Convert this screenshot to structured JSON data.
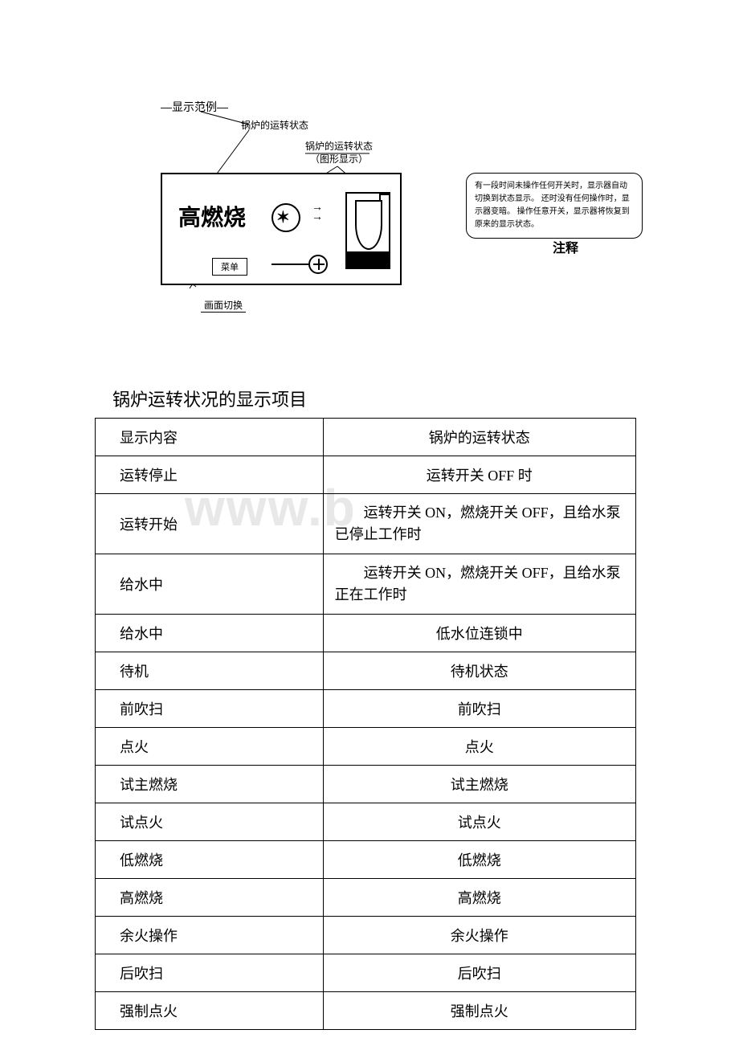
{
  "watermark": "www.b",
  "diagram": {
    "legend": "—显示范例—",
    "callout1": "锅炉的运转状态",
    "callout2_line1": "锅炉的运转状态",
    "callout2_line2": "（图形显示）",
    "big_text": "高燃烧",
    "menu_btn": "菜单",
    "callout_bottom": "画面切换",
    "note_text": "有一段时间未操作任何开关时，显示器自动切换到状态显示。 还时没有任何操作时，显示器变暗。 操作任意开关，显示器将恢复到原来的显示状态。",
    "note_label": "注释"
  },
  "section_title": "锅炉运转状况的显示项目",
  "table": {
    "rows": [
      {
        "c1": "显示内容",
        "c2": "锅炉的运转状态",
        "center": true
      },
      {
        "c1": "运转停止",
        "c2": "运转开关 OFF 时",
        "center": true
      },
      {
        "c1": "运转开始",
        "c2": "　　运转开关 ON，燃烧开关 OFF，且给水泵已停止工作时",
        "tall": true,
        "multi": true
      },
      {
        "c1": "给水中",
        "c2": "　　运转开关 ON，燃烧开关 OFF，且给水泵正在工作时",
        "tall": true,
        "multi": true
      },
      {
        "c1": "给水中",
        "c2": "低水位连锁中",
        "center": true
      },
      {
        "c1": "待机",
        "c2": "待机状态",
        "center": true
      },
      {
        "c1": "前吹扫",
        "c2": "前吹扫",
        "center": true
      },
      {
        "c1": "点火",
        "c2": "点火",
        "center": true
      },
      {
        "c1": "试主燃烧",
        "c2": "试主燃烧",
        "center": true
      },
      {
        "c1": "试点火",
        "c2": "试点火",
        "center": true
      },
      {
        "c1": "低燃烧",
        "c2": "低燃烧",
        "center": true
      },
      {
        "c1": "高燃烧",
        "c2": "高燃烧",
        "center": true
      },
      {
        "c1": "余火操作",
        "c2": "余火操作",
        "center": true
      },
      {
        "c1": "后吹扫",
        "c2": "后吹扫",
        "center": true
      },
      {
        "c1": "强制点火",
        "c2": "强制点火",
        "center": true
      }
    ]
  },
  "colors": {
    "text": "#000000",
    "background": "#ffffff",
    "watermark": "#e8e8e8",
    "border": "#000000"
  }
}
